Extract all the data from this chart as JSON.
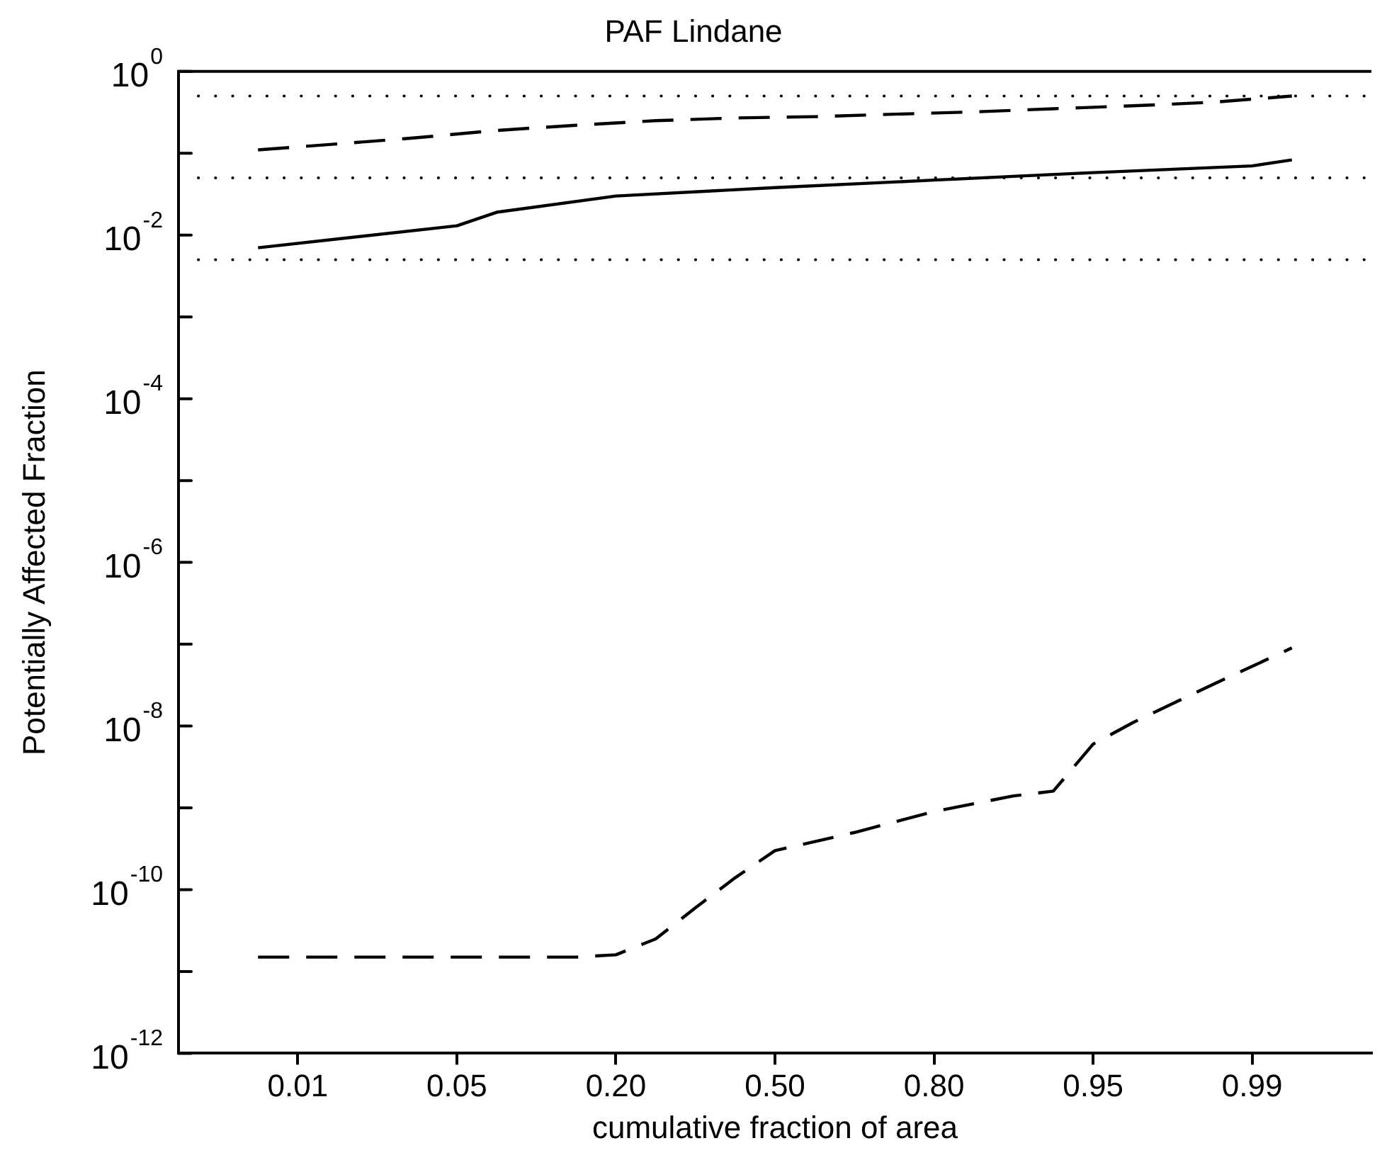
{
  "chart_data": {
    "type": "line",
    "title": "PAF Lindane",
    "xlabel": "cumulative fraction of area",
    "ylabel": "Potentially Affected Fraction",
    "categories": [
      null,
      null,
      null,
      "0.01",
      null,
      null,
      null,
      "0.05",
      null,
      null,
      null,
      "0.20",
      null,
      null,
      null,
      "0.50",
      null,
      null,
      null,
      "0.80",
      null,
      null,
      null,
      "0.95",
      null,
      null,
      null,
      "0.99",
      null,
      null,
      null
    ],
    "series": [
      {
        "color": "#000000",
        "line_style": "dashed",
        "values": [
          null,
          null,
          0.11,
          null,
          0.13,
          null,
          0.155,
          null,
          0.19,
          null,
          0.22,
          null,
          0.25,
          null,
          0.27,
          null,
          0.28,
          null,
          0.3,
          null,
          0.32,
          null,
          0.35,
          null,
          0.38,
          null,
          0.42,
          null,
          0.5,
          null,
          null
        ]
      },
      {
        "color": "#000000",
        "line_style": "solid",
        "values": [
          null,
          null,
          0.007,
          null,
          null,
          null,
          null,
          0.013,
          0.019,
          null,
          null,
          0.03,
          null,
          null,
          null,
          0.038,
          null,
          null,
          null,
          0.047,
          null,
          null,
          null,
          0.058,
          null,
          null,
          null,
          0.07,
          0.083,
          null,
          null
        ]
      },
      {
        "color": "#000000",
        "line_style": "dashed",
        "values": [
          null,
          null,
          1.5e-11,
          null,
          1.5e-11,
          null,
          1.5e-11,
          null,
          1.5e-11,
          null,
          1.5e-11,
          1.6e-11,
          2.5e-11,
          6e-11,
          1.4e-10,
          3e-10,
          null,
          5e-10,
          null,
          9e-10,
          null,
          1.4e-09,
          1.6e-09,
          6e-09,
          1.1e-08,
          null,
          3.2e-08,
          null,
          9e-08,
          null,
          null
        ]
      }
    ],
    "log": "y",
    "ylim": [
      1e-12,
      1
    ],
    "yticks": [
      {
        "value": 1,
        "label": "10$^{0}$"
      },
      {
        "value": 0.1,
        "label": null
      },
      {
        "value": 0.01,
        "label": "10$^{-2}$"
      },
      {
        "value": 0.001,
        "label": null
      },
      {
        "value": 0.0001,
        "label": "10$^{-4}$"
      },
      {
        "value": 1e-05,
        "label": null
      },
      {
        "value": 1e-06,
        "label": "10$^{-6}$"
      },
      {
        "value": 1e-07,
        "label": null
      },
      {
        "value": 1e-08,
        "label": "10$^{-8}$"
      },
      {
        "value": 1e-09,
        "label": null
      },
      {
        "value": 1e-10,
        "label": "10$^{-10}$"
      },
      {
        "value": 1e-11,
        "label": null
      },
      {
        "value": 1e-12,
        "label": "10$^{-12}$"
      }
    ],
    "ref_lines": [
      {
        "axis": "y",
        "value": 0.5,
        "color": "#000000",
        "line_style": "dotted"
      },
      {
        "axis": "y",
        "value": 0.05,
        "color": "#000000",
        "line_style": "dotted"
      },
      {
        "axis": "y",
        "value": 0.005,
        "color": "#000000",
        "line_style": "dotted"
      }
    ],
    "legend": false
  }
}
